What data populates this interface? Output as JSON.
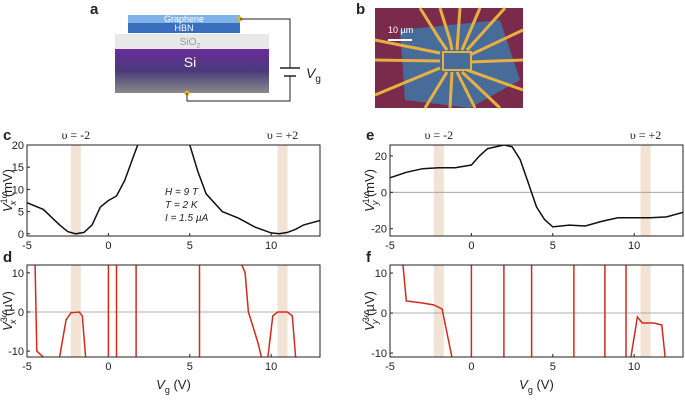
{
  "panels": {
    "a": "a",
    "b": "b",
    "c": "c",
    "d": "d",
    "e": "e",
    "f": "f"
  },
  "schematic": {
    "graphene": "Graphene",
    "hbn": "HBN",
    "sio2": {
      "text": "SiO",
      "sub": "2"
    },
    "si": "Si",
    "vg": {
      "main": "V",
      "sub": "g"
    }
  },
  "micrograph": {
    "scale_bar": "10 µm"
  },
  "chart_data": [
    {
      "type": "line",
      "ylabel": {
        "main": "V",
        "sub": "x",
        "sup": "1ω",
        "unit": " (mV)"
      },
      "xlim": [
        -5,
        13
      ],
      "xticks": [
        -5,
        0,
        5,
        10
      ],
      "ylim": [
        -0.5,
        20
      ],
      "yticks": [
        0,
        5,
        10,
        15,
        20
      ],
      "shaded": [
        -2,
        10.7
      ],
      "band_labels": [
        "υ = -2",
        "υ = +2"
      ],
      "notes": [
        "H = 9 T",
        "T = 2 K",
        "I = 1.5 µA"
      ],
      "color": "#111111",
      "x": [
        -5,
        -4,
        -3,
        -2.5,
        -2,
        -1.5,
        -1,
        -0.5,
        0,
        0.5,
        1,
        1.5,
        1.8,
        3,
        5,
        5.5,
        6,
        7,
        8,
        9,
        10,
        10.5,
        11,
        11.5,
        12,
        13
      ],
      "values": [
        7,
        5.5,
        2,
        0.5,
        0,
        0.3,
        2,
        6,
        7.5,
        8.5,
        12,
        17,
        20,
        null,
        20,
        14,
        9,
        5,
        3.5,
        1.5,
        0.2,
        0,
        0.3,
        1,
        2,
        3
      ]
    },
    {
      "type": "line",
      "ylabel": {
        "main": "V",
        "sub": "x",
        "sup": "3ω",
        "unit": " (µV)"
      },
      "xlabel": {
        "main": "V",
        "sub": "g",
        "unit": " (V)"
      },
      "xlim": [
        -5,
        13
      ],
      "xticks": [
        -5,
        0,
        5,
        10
      ],
      "ylim": [
        -11.5,
        12
      ],
      "yticks": [
        -10,
        0,
        10
      ],
      "zero_line": true,
      "shaded": [
        -2,
        10.7
      ],
      "color": "#d42a1e",
      "x": [
        -4.5,
        -4.4,
        -4,
        -3.5,
        -3,
        -2.6,
        -2.3,
        -1.8,
        -1.6,
        -1.4,
        -1,
        0,
        0,
        0.2,
        0.5,
        0.5,
        1,
        1.7,
        1.7,
        3,
        5.6,
        5.6,
        7,
        8.2,
        8.4,
        8.6,
        8.9,
        9.2,
        9.4,
        9.6,
        9.8,
        10.1,
        10.4,
        11,
        11.3,
        11.5
      ],
      "values": [
        12,
        -10,
        -11.5,
        null,
        -11.5,
        -2,
        -0.2,
        0,
        -1,
        -11.5,
        null,
        -11.5,
        12,
        null,
        12,
        -11.5,
        null,
        -11.5,
        12,
        null,
        12,
        -11.5,
        null,
        12,
        10,
        0,
        -4,
        -8,
        -11.5,
        null,
        -11.5,
        -1,
        0,
        0,
        -1,
        -11.5
      ]
    },
    {
      "type": "line",
      "ylabel": {
        "main": "V",
        "sub": "y",
        "sup": "1ω",
        "unit": " (mV)"
      },
      "xlim": [
        -5,
        13
      ],
      "xticks": [
        -5,
        0,
        5,
        10
      ],
      "ylim": [
        -24,
        26
      ],
      "yticks": [
        -20,
        0,
        20
      ],
      "zero_line": true,
      "shaded": [
        -2,
        10.7
      ],
      "band_labels": [
        "υ = -2",
        "υ = +2"
      ],
      "color": "#111111",
      "x": [
        -5,
        -4,
        -3,
        -2,
        -1,
        0,
        0.5,
        1,
        2,
        2.5,
        3,
        3.5,
        4,
        4.5,
        5,
        6,
        7,
        8,
        9,
        10,
        11,
        12,
        13
      ],
      "values": [
        8,
        11,
        13,
        13.5,
        13.5,
        15,
        20,
        24,
        26,
        25,
        18,
        5,
        -8,
        -15,
        -19,
        -18,
        -18.5,
        -16,
        -14,
        -14,
        -14,
        -13.5,
        -11
      ]
    },
    {
      "type": "line",
      "ylabel": {
        "main": "V",
        "sub": "y",
        "sup": "3ω",
        "unit": " (µV)"
      },
      "xlabel": {
        "main": "V",
        "sub": "g",
        "unit": " (V)"
      },
      "xlim": [
        -5,
        13
      ],
      "xticks": [
        -5,
        0,
        5,
        10
      ],
      "ylim": [
        -11,
        12
      ],
      "yticks": [
        -10,
        0,
        10
      ],
      "zero_line": true,
      "shaded": [
        -2,
        10.7
      ],
      "color": "#d42a1e",
      "x": [
        -4.2,
        -4,
        -3,
        -2.3,
        -1.8,
        -1.5,
        -1.2,
        -1,
        0,
        0,
        0.5,
        2,
        2,
        3,
        3.7,
        3.7,
        5,
        6.3,
        6.3,
        7,
        8.2,
        8.2,
        9,
        9.5,
        9.5,
        9.7,
        9.8,
        10.2,
        10.5,
        11.2,
        11.7,
        11.9
      ],
      "values": [
        12,
        3,
        2.5,
        2,
        1,
        -5,
        -11,
        null,
        -11,
        12,
        null,
        12,
        -11,
        null,
        -11,
        12,
        null,
        12,
        -11,
        null,
        -11,
        12,
        null,
        12,
        -11,
        null,
        -11,
        -1,
        -2.5,
        -2.5,
        -3,
        -11
      ]
    }
  ]
}
